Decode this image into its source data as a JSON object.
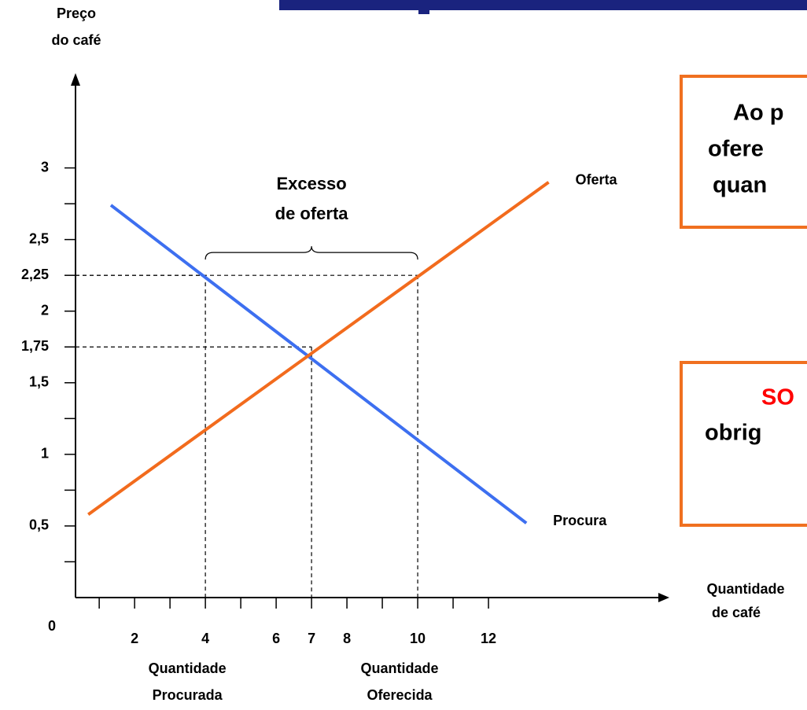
{
  "chart_data": {
    "type": "line",
    "y_axis_label": [
      "Preço",
      "do café"
    ],
    "x_axis_label": [
      "Quantidade",
      "de café"
    ],
    "origin_label": "0",
    "xlim": [
      0.33,
      16.8
    ],
    "ylim": [
      0,
      3.64
    ],
    "xticks": [
      2,
      4,
      6,
      7,
      8,
      10,
      12
    ],
    "x_minor_ticks": [
      1,
      3,
      5,
      9,
      11
    ],
    "yticks": [
      {
        "value": 0.5,
        "label": "0,5"
      },
      1,
      {
        "value": 1.5,
        "label": "1,5"
      },
      {
        "value": 1.75,
        "label": "1,75"
      },
      2,
      {
        "value": 2.25,
        "label": "2,25"
      },
      {
        "value": 2.5,
        "label": "2,5"
      },
      3
    ],
    "y_minor_ticks": [
      0.25,
      0.75,
      1.25,
      2.75
    ],
    "series": [
      {
        "name": "Procura",
        "color": "#3d6ff0",
        "x": [
          1.33,
          13.07
        ],
        "values": [
          2.74,
          0.52
        ]
      },
      {
        "name": "Oferta",
        "color": "#f26b1d",
        "x": [
          0.69,
          13.7
        ],
        "values": [
          0.58,
          2.9
        ]
      }
    ],
    "guides": [
      {
        "x": 4,
        "y": 2.25,
        "label": [
          "Quantidade",
          "Procurada"
        ]
      },
      {
        "x": 7,
        "y": 1.75
      },
      {
        "x": 10,
        "y": 2.25,
        "label": [
          "Quantidade",
          "Oferecida"
        ]
      }
    ],
    "brace": {
      "x": [
        4,
        10
      ],
      "y": 2.36,
      "label": [
        "Excesso",
        "de oferta"
      ]
    }
  },
  "side_boxes": [
    {
      "lines": [
        "Ao p",
        "ofere",
        "quan"
      ]
    },
    {
      "lines": [
        "SO",
        "obrig"
      ]
    }
  ]
}
